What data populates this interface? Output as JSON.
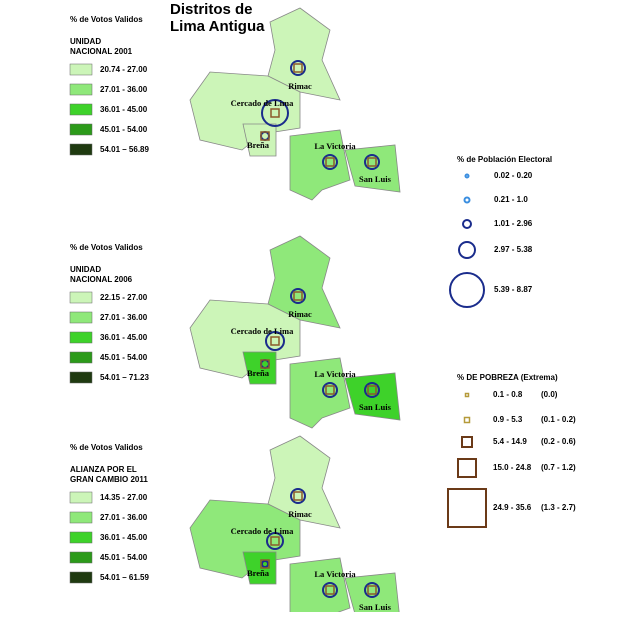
{
  "title": [
    "Distritos de",
    "Lima Antigua"
  ],
  "panels": [
    {
      "legend_title": "% de Votos Validos",
      "party": [
        "UNIDAD",
        "NACIONAL 2001"
      ],
      "classes": [
        "20.74 - 27.00",
        "27.01 - 36.00",
        "36.01 - 45.00",
        "45.01 - 54.00",
        "54.01 – 56.89"
      ]
    },
    {
      "legend_title": "% de Votos Validos",
      "party": [
        "UNIDAD",
        "NACIONAL 2006"
      ],
      "classes": [
        "22.15 - 27.00",
        "27.01 - 36.00",
        "36.01 - 45.00",
        "45.01 - 54.00",
        "54.01 – 71.23"
      ]
    },
    {
      "legend_title": "% de Votos Validos",
      "party": [
        "ALIANZA POR EL",
        "GRAN CAMBIO  2011"
      ],
      "classes": [
        "14.35 - 27.00",
        "27.01 - 36.00",
        "36.01 - 45.00",
        "45.01 - 54.00",
        "54.01 – 61.59"
      ]
    }
  ],
  "districts": [
    "Rimac",
    "Cercado de Lima",
    "Breña",
    "La Victoria",
    "San Luis"
  ],
  "population_legend": {
    "title": "% de Población Electoral",
    "classes": [
      "0.02 - 0.20",
      "0.21 - 1.0",
      "1.01 - 2.96",
      "2.97 - 5.38",
      "5.39 - 8.87"
    ]
  },
  "poverty_legend": {
    "title": "% DE POBREZA (Extrema)",
    "classes": [
      [
        "0.1 - 0.8",
        "(0.0)"
      ],
      [
        "0.9 - 5.3",
        "(0.1 - 0.2)"
      ],
      [
        "5.4 - 14.9",
        "(0.2 - 0.6)"
      ],
      [
        "15.0 - 24.8",
        "(0.7 - 1.2)"
      ],
      [
        "24.9 - 35.6",
        "(1.3 - 2.7)"
      ]
    ]
  }
}
